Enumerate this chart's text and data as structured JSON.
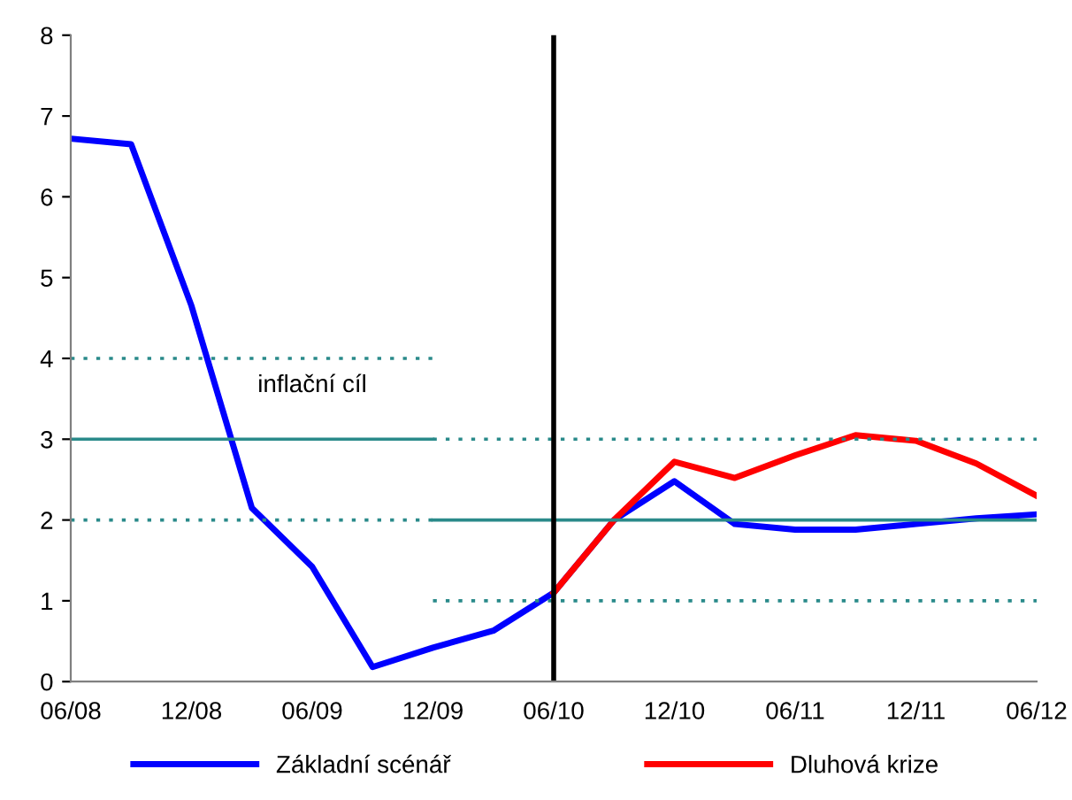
{
  "chart_data": {
    "type": "line",
    "categories": [
      "06/08",
      null,
      "12/08",
      null,
      "06/09",
      null,
      "12/09",
      null,
      "06/10",
      null,
      "12/10",
      null,
      "06/11",
      null,
      "12/11",
      null,
      "06/12"
    ],
    "series": [
      {
        "name": "Základní scénář",
        "color": "#0000ff",
        "values": [
          6.72,
          6.65,
          4.65,
          2.15,
          1.42,
          0.18,
          0.42,
          0.63,
          1.1,
          2.0,
          2.48,
          1.95,
          1.88,
          1.88,
          1.95,
          2.02,
          2.07
        ]
      },
      {
        "name": "Dluhová krize",
        "color": "#ff0000",
        "values": [
          null,
          null,
          null,
          null,
          null,
          null,
          null,
          null,
          1.1,
          2.0,
          2.72,
          2.52,
          2.8,
          3.05,
          2.98,
          2.7,
          2.3
        ]
      },
      {
        "color": "#2a8a8a",
        "line_style": "solid",
        "values": [
          3,
          3,
          3,
          3,
          3,
          3,
          3,
          null,
          null,
          null,
          null,
          null,
          null,
          null,
          null,
          null,
          null
        ]
      },
      {
        "color": "#2a8a8a",
        "line_style": "solid",
        "values": [
          null,
          null,
          null,
          null,
          null,
          null,
          2,
          2,
          2,
          2,
          2,
          2,
          2,
          2,
          2,
          2,
          2
        ]
      },
      {
        "color": "#2a8a8a",
        "line_style": "dotted",
        "values": [
          4,
          4,
          4,
          4,
          4,
          4,
          4,
          null,
          null,
          null,
          null,
          null,
          null,
          null,
          null,
          null,
          null
        ]
      },
      {
        "color": "#2a8a8a",
        "line_style": "dotted",
        "values": [
          2,
          2,
          2,
          2,
          2,
          2,
          2,
          null,
          null,
          null,
          null,
          null,
          null,
          null,
          null,
          null,
          null
        ]
      },
      {
        "color": "#2a8a8a",
        "line_style": "dotted",
        "values": [
          null,
          null,
          null,
          null,
          null,
          null,
          3,
          3,
          3,
          3,
          3,
          3,
          3,
          3,
          3,
          3,
          3
        ]
      },
      {
        "color": "#2a8a8a",
        "line_style": "dotted",
        "values": [
          null,
          null,
          null,
          null,
          null,
          null,
          1,
          1,
          1,
          1,
          1,
          1,
          1,
          1,
          1,
          1,
          1
        ]
      }
    ],
    "ylim": [
      0,
      8
    ],
    "yticks": [
      0,
      1,
      2,
      3,
      4,
      5,
      6,
      7,
      8
    ],
    "ref_lines": [
      {
        "axis": "x",
        "value": "06/10",
        "color": "#000000"
      }
    ],
    "annotations": [
      "inflační cíl"
    ],
    "grid": false,
    "legend": "bottom",
    "marker": "none"
  }
}
